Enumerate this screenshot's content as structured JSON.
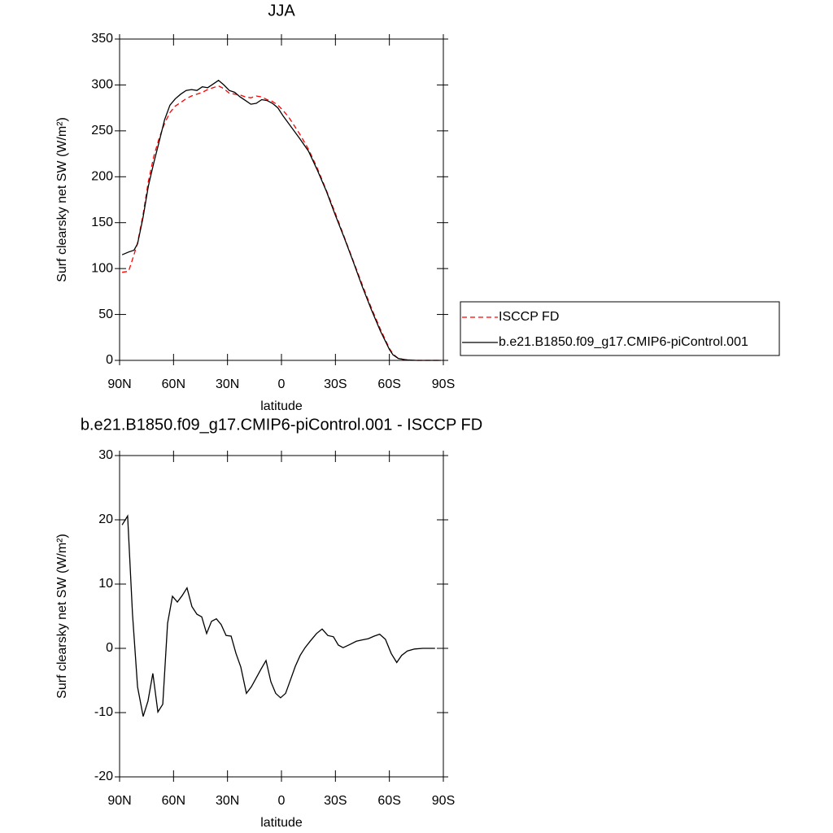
{
  "chart_data": [
    {
      "type": "line",
      "title": "JJA",
      "xlabel": "latitude",
      "ylabel": "Surf clearsky net SW (W/m²)",
      "x": [
        88.6,
        85,
        82,
        80,
        77,
        74,
        71,
        68,
        65,
        62,
        59,
        56,
        53,
        50,
        47,
        44,
        41,
        38,
        35,
        32,
        29,
        26,
        23,
        20,
        17,
        14,
        11,
        8,
        5,
        2,
        -1,
        -4,
        -7,
        -10,
        -15,
        -20,
        -25,
        -30,
        -35,
        -40,
        -45,
        -50,
        -55,
        -60,
        -62,
        -65,
        -68,
        -70,
        -75,
        -80,
        -85,
        -88.6
      ],
      "series": [
        {
          "name": "ISCCP FD",
          "color": "#ff0000",
          "dashed": true,
          "values": [
            96,
            97,
            115,
            128,
            158,
            195,
            222,
            242,
            258,
            270,
            277,
            281,
            285,
            288,
            290,
            292,
            295,
            297,
            299,
            296,
            291,
            290,
            289,
            287,
            286,
            288,
            287,
            284,
            282,
            278,
            272,
            265,
            256,
            247,
            230,
            209,
            185,
            160,
            134,
            108,
            82,
            57,
            34,
            13,
            7,
            2,
            1,
            0,
            0,
            0,
            0,
            0
          ]
        },
        {
          "name": "b.e21.B1850.f09_g17.CMIP6-piControl.001",
          "color": "#000000",
          "dashed": false,
          "values": [
            115,
            118,
            120,
            127,
            155,
            190,
            215,
            238,
            262,
            278,
            285,
            290,
            294,
            295,
            294,
            298,
            297,
            301,
            305,
            300,
            294,
            292,
            287,
            283,
            279,
            280,
            284,
            283,
            280,
            275,
            266,
            258,
            250,
            242,
            228,
            207,
            184,
            158,
            133,
            107,
            80,
            55,
            32,
            12,
            6,
            2,
            1,
            0.5,
            0,
            0,
            0,
            0
          ]
        }
      ],
      "xlim": [
        90,
        -90
      ],
      "xticks": [
        {
          "value": 90,
          "label": "90N"
        },
        {
          "value": 60,
          "label": "60N"
        },
        {
          "value": 30,
          "label": "30N"
        },
        0,
        {
          "value": -30,
          "label": "30S"
        },
        {
          "value": -60,
          "label": "60S"
        },
        {
          "value": -90,
          "label": "90S"
        }
      ],
      "ylim": [
        0,
        350
      ],
      "yticks": [
        0,
        50,
        100,
        150,
        200,
        250,
        300,
        350
      ],
      "legend": "outside-right"
    },
    {
      "type": "line",
      "title": "b.e21.B1850.f09_g17.CMIP6-piControl.001 - ISCCP FD",
      "xlabel": "latitude",
      "ylabel": "Surf clearsky net SW (W/m²)",
      "x": [
        88.6,
        85.5,
        82.8,
        80,
        76.9,
        74.2,
        71.5,
        68.7,
        66,
        63.3,
        60.6,
        57.9,
        55.2,
        52.5,
        49.8,
        47,
        44.3,
        41.6,
        38.9,
        36.2,
        33.5,
        30.8,
        28,
        25.3,
        22.6,
        19.5,
        16.8,
        14,
        11.3,
        8.6,
        5.9,
        3.2,
        0.5,
        -2.3,
        -5,
        -7.7,
        -10.4,
        -13.1,
        -15.9,
        -19.5,
        -22.6,
        -25.8,
        -28.9,
        -31.6,
        -34.3,
        -38,
        -41.6,
        -44.7,
        -48.3,
        -51.5,
        -54.6,
        -57.8,
        -61,
        -64.1,
        -66.8,
        -70,
        -74,
        -78.6,
        -85.4
      ],
      "values": [
        19.2,
        20.6,
        5.3,
        -6,
        -10.6,
        -8.2,
        -3.9,
        -9.9,
        -8.7,
        3.9,
        8.1,
        7.2,
        8.2,
        9.4,
        6.5,
        5.3,
        4.9,
        2.3,
        4.2,
        4.6,
        3.7,
        2,
        1.9,
        -0.8,
        -2.9,
        -7,
        -6,
        -4.6,
        -3.2,
        -1.9,
        -5.2,
        -7,
        -7.7,
        -7,
        -4.9,
        -2.8,
        -1.1,
        0.1,
        1.1,
        2.3,
        3,
        2,
        1.8,
        0.5,
        0.1,
        0.6,
        1.1,
        1.3,
        1.5,
        1.9,
        2.2,
        1.4,
        -0.8,
        -2.2,
        -1.1,
        -0.4,
        -0.1,
        0,
        0
      ],
      "color": "#000000",
      "xlim": [
        90,
        -90
      ],
      "xticks": [
        {
          "value": 90,
          "label": "90N"
        },
        {
          "value": 60,
          "label": "60N"
        },
        {
          "value": 30,
          "label": "30N"
        },
        0,
        {
          "value": -30,
          "label": "30S"
        },
        {
          "value": -60,
          "label": "60S"
        },
        {
          "value": -90,
          "label": "90S"
        }
      ],
      "ylim": [
        -20,
        30
      ],
      "yticks": [
        -20,
        -10,
        0,
        10,
        20,
        30
      ]
    }
  ]
}
